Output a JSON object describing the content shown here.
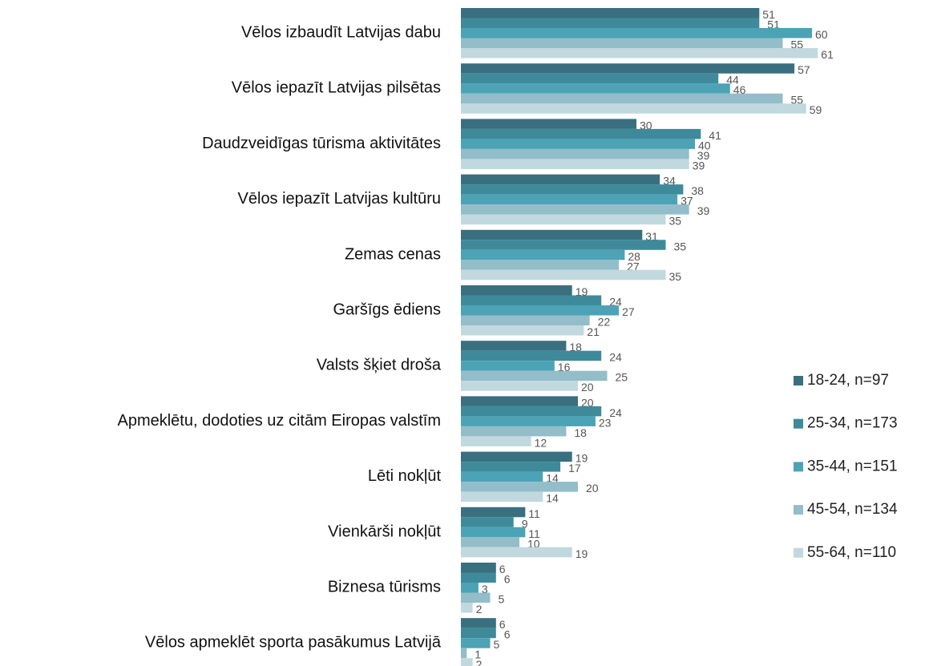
{
  "chart_data": {
    "type": "barh",
    "categories": [
      "Vēlos izbaudīt Latvijas dabu",
      "Vēlos iepazīt Latvijas pilsētas",
      "Daudzveidīgas tūrisma aktivitātes",
      "Vēlos iepazīt Latvijas kultūru",
      "Zemas cenas",
      "Garšīgs ēdiens",
      "Valsts šķiet droša",
      "Apmeklētu, dodoties uz citām Eiropas valstīm",
      "Lēti nokļūt",
      "Vienkārši nokļūt",
      "Biznesa tūrisms",
      "Vēlos apmeklēt sporta pasākumus Latvijā"
    ],
    "series": [
      {
        "name": "18-24, n=97",
        "color": "#3a6f80",
        "values": [
          51,
          57,
          30,
          34,
          31,
          19,
          18,
          20,
          19,
          11,
          6,
          6
        ]
      },
      {
        "name": "25-34, n=173",
        "color": "#3e8a9a",
        "values": [
          51,
          44,
          41,
          38,
          35,
          24,
          24,
          24,
          17,
          9,
          6,
          6
        ]
      },
      {
        "name": "35-44, n=151",
        "color": "#4ba3b5",
        "values": [
          60,
          46,
          40,
          37,
          28,
          27,
          16,
          23,
          14,
          11,
          3,
          5
        ]
      },
      {
        "name": "45-54, n=134",
        "color": "#93bdc8",
        "values": [
          55,
          55,
          39,
          39,
          27,
          22,
          25,
          18,
          20,
          10,
          5,
          1
        ]
      },
      {
        "name": "55-64, n=110",
        "color": "#c1d8df",
        "values": [
          61,
          59,
          39,
          35,
          35,
          21,
          20,
          12,
          14,
          19,
          2,
          2
        ]
      }
    ],
    "legend": "right"
  }
}
